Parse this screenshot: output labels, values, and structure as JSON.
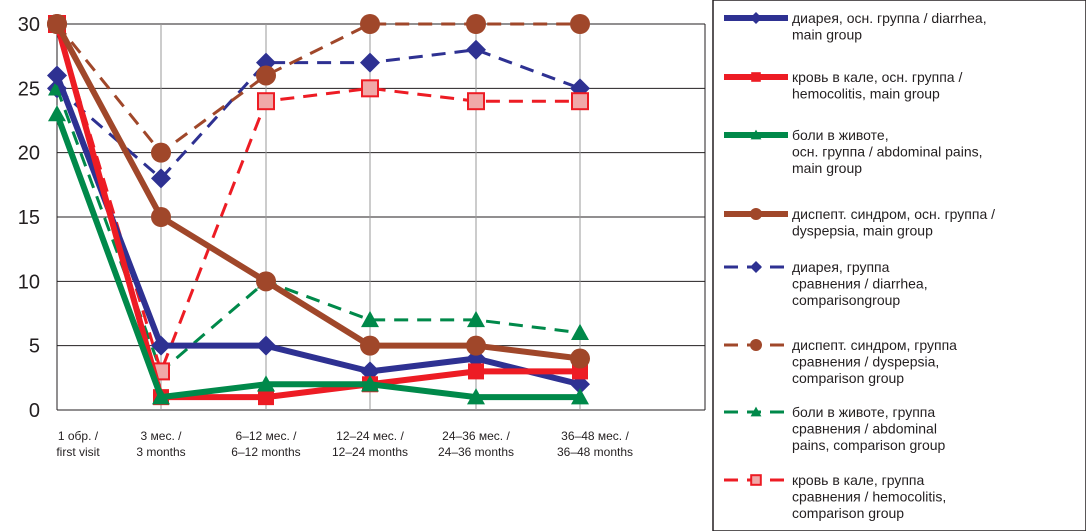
{
  "chart_data": {
    "type": "line",
    "title": "",
    "xlabel": "",
    "ylabel": "",
    "ylim": [
      0,
      30
    ],
    "yticks": [
      "0",
      "5",
      "10",
      "15",
      "20",
      "25",
      "30"
    ],
    "grid": true,
    "legend_position": "right",
    "categories": [
      [
        "1 обр. /",
        "first visit"
      ],
      [
        "3 мес. /",
        "3 months"
      ],
      [
        "6–12 мес. /",
        "6–12 months"
      ],
      [
        "12–24 мес. /",
        "12–24 months"
      ],
      [
        "24–36 мес. /",
        "24–36 months"
      ],
      [
        "36–48 мес. /",
        "36–48 months"
      ]
    ],
    "series": [
      {
        "name": "диарея, осн. группа / diarrhea, main group",
        "legend_lines": [
          "диарея, осн. группа / diarrhea,",
          "main group"
        ],
        "values": [
          26,
          5,
          5,
          3,
          4,
          2
        ],
        "color": "#2e3192",
        "style": "solid",
        "marker": "diamond"
      },
      {
        "name": "кровь в кале, осн. группа / hemocolitis, main group",
        "legend_lines": [
          "кровь в кале, осн. группа /",
          "hemocolitis, main group"
        ],
        "values": [
          30,
          1,
          1,
          2,
          3,
          3
        ],
        "color": "#ed1c24",
        "style": "solid",
        "marker": "square"
      },
      {
        "name": "боли в животе, осн. группа / abdominal pains, main group",
        "legend_lines": [
          "боли в животе,",
          "осн. группа / abdominal pains,",
          "main group"
        ],
        "values": [
          23,
          1,
          2,
          2,
          1,
          1
        ],
        "color": "#00894a",
        "style": "solid",
        "marker": "triangle"
      },
      {
        "name": "диспепт. синдром, осн. группа / dyspepsia, main group",
        "legend_lines": [
          "диспепт. синдром, осн. группа /",
          "dyspepsia, main group"
        ],
        "values": [
          30,
          15,
          10,
          5,
          5,
          4
        ],
        "color": "#a0472a",
        "style": "solid",
        "marker": "circle"
      },
      {
        "name": "диарея, группа сравнения / diarrhea, comparisongroup",
        "legend_lines": [
          "диарея, группа",
          "сравнения / diarrhea,",
          "comparisongroup"
        ],
        "values": [
          25,
          18,
          27,
          27,
          28,
          25
        ],
        "color": "#2e3192",
        "style": "dashed",
        "marker": "diamond"
      },
      {
        "name": "диспепт. синдром, группа сравнения / dyspepsia, comparison group",
        "legend_lines": [
          "диспепт. синдром, группа",
          "сравнения / dyspepsia,",
          "comparison group"
        ],
        "values": [
          30,
          20,
          26,
          30,
          30,
          30
        ],
        "color": "#a0472a",
        "style": "dashed",
        "marker": "circle"
      },
      {
        "name": "боли в животе, группа сравнения / abdominal pains, comparison group",
        "legend_lines": [
          "боли в животе, группа",
          "сравнения / abdominal",
          "pains, comparison group"
        ],
        "values": [
          25,
          3,
          10,
          7,
          7,
          6
        ],
        "color": "#00894a",
        "style": "dashed",
        "marker": "triangle"
      },
      {
        "name": "кровь в кале, группа сравнения / hemocolitis, comparison group",
        "legend_lines": [
          "кровь в кале, группа",
          "сравнения / hemocolitis,",
          "comparison group"
        ],
        "values": [
          30,
          3,
          24,
          25,
          24,
          24
        ],
        "color": "#ed1c24",
        "style": "dashed",
        "marker": "square-light"
      }
    ]
  }
}
